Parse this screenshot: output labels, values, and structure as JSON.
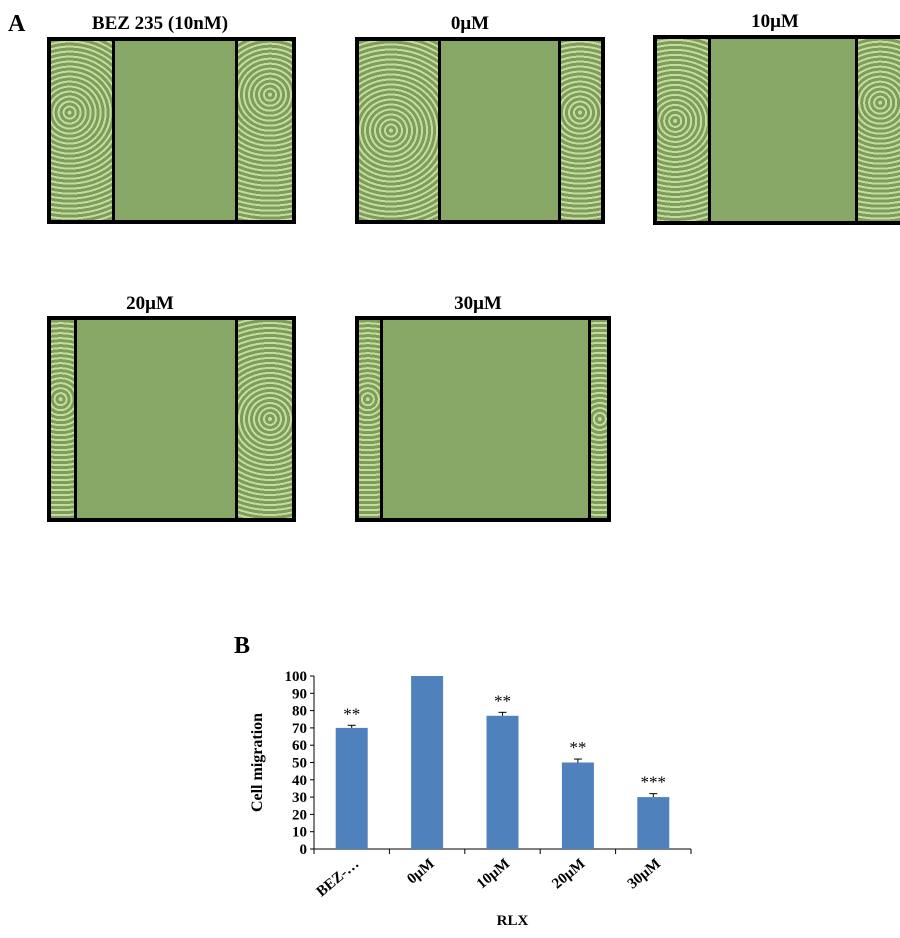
{
  "panel_a": {
    "letter": "A",
    "images": [
      {
        "title": "BEZ 235 (10nM)"
      },
      {
        "title": "0μM"
      },
      {
        "title": "10μM"
      },
      {
        "title": "20μM"
      },
      {
        "title": "30μM"
      }
    ],
    "colors": {
      "wound": "#86a765",
      "cells": "#bcd796",
      "frame": "#000000"
    }
  },
  "panel_b": {
    "letter": "B"
  },
  "chart_data": {
    "type": "bar",
    "categories": [
      "BEZ-…",
      "0μM",
      "10μM",
      "20μM",
      "30μM"
    ],
    "values": [
      70,
      100,
      77,
      50,
      30
    ],
    "errors": [
      1.5,
      0,
      2,
      2,
      2
    ],
    "significance": [
      "**",
      "",
      "**",
      "**",
      "***"
    ],
    "title": "",
    "xlabel": "RLX",
    "ylabel": "Cell migration",
    "ylim": [
      0,
      100
    ],
    "yticks": [
      0,
      10,
      20,
      30,
      40,
      50,
      60,
      70,
      80,
      90,
      100
    ],
    "grid": false,
    "bar_color": "#4f81bd"
  }
}
